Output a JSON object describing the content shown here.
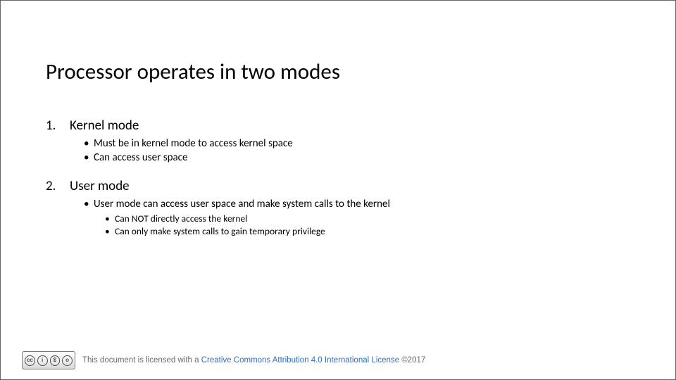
{
  "title": "Processor operates in two modes",
  "items": [
    {
      "num": "1.",
      "label": "Kernel mode",
      "bullets": [
        {
          "text": "Must be in kernel mode to access kernel space"
        },
        {
          "text": "Can access user space"
        }
      ]
    },
    {
      "num": "2.",
      "label": "User mode",
      "bullets": [
        {
          "text": "User mode can access user space and make system calls to the kernel",
          "sub": [
            {
              "text": "Can NOT directly access the kernel"
            },
            {
              "text": "Can only make system  calls to gain temporary privilege"
            }
          ]
        }
      ]
    }
  ],
  "footer": {
    "prefix": "This document is licensed with a ",
    "link": "Creative Commons Attribution 4.0 International License",
    "suffix": " ©2017"
  },
  "cc": {
    "c1": "cc",
    "c2": "i",
    "c3": "$",
    "c4": "o",
    "by": "BY",
    "nc": "NC",
    "sa": "SA"
  }
}
